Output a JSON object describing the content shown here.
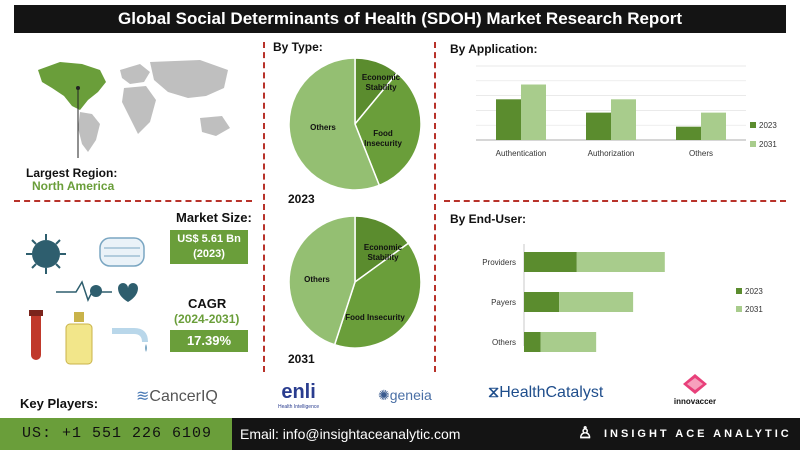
{
  "title": "Global Social Determinants of Health (SDOH) Market Research Report",
  "largest_region": {
    "label": "Largest Region:",
    "value": "North America"
  },
  "market_size": {
    "label": "Market Size:",
    "value": "US$ 5.61 Bn",
    "year": "(2023)"
  },
  "cagr": {
    "label": "CAGR",
    "period": "(2024-2031)",
    "value": "17.39%"
  },
  "key_players_label": "Key Players:",
  "players": [
    "CancerIQ",
    "enli",
    "Health Intelligence",
    "geneia",
    "HealthCatalyst",
    "innovaccer"
  ],
  "footer": {
    "phone": "US: +1 551 226 6109",
    "email": "Email: info@insightaceanalytic.com",
    "brand": "INSIGHT ACE ANALYTIC"
  },
  "colors": {
    "dark_green": "#6a9e3a",
    "light_green": "#a8cc8c",
    "mid_green": "#5b8c2e",
    "title_bg": "#141414",
    "divider": "#b8322a"
  },
  "chart_data": [
    {
      "type": "pie",
      "title": "By Type:",
      "caption": "2023",
      "labels": [
        "Economic Stability",
        "Food Insecurity",
        "Others"
      ],
      "values": [
        11,
        33,
        56
      ]
    },
    {
      "type": "pie",
      "caption": "2031",
      "labels": [
        "Economic Stability",
        "Food Insecurity",
        "Others"
      ],
      "values": [
        15,
        40,
        45
      ]
    },
    {
      "type": "bar",
      "title": "By Application:",
      "categories": [
        "Authentication",
        "Authorization",
        "Others"
      ],
      "series": [
        {
          "name": "2023",
          "values": [
            0.55,
            0.37,
            0.18
          ]
        },
        {
          "name": "2031",
          "values": [
            0.75,
            0.55,
            0.37
          ]
        }
      ],
      "legend": "right"
    },
    {
      "type": "bar",
      "orientation": "horizontal",
      "stacked": true,
      "title": "By End-User:",
      "categories": [
        "Providers",
        "Payers",
        "Others"
      ],
      "series": [
        {
          "name": "2023",
          "values": [
            0.6,
            0.4,
            0.19
          ]
        },
        {
          "name": "2031",
          "values": [
            0.8,
            0.62,
            0.41
          ]
        }
      ],
      "legend": "right"
    }
  ]
}
